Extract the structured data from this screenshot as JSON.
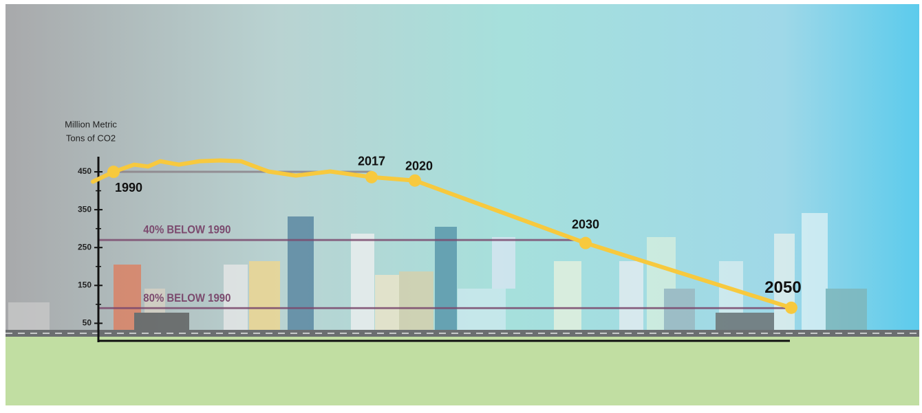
{
  "chart_data": {
    "type": "line",
    "y_label": [
      "Million Metric",
      "Tons of CO2"
    ],
    "categories": [
      null,
      "1990",
      null,
      null,
      null,
      null,
      null,
      null,
      null,
      null,
      null,
      null,
      "2017",
      "2020",
      "2030",
      "2050"
    ],
    "values": [
      424,
      450,
      469,
      464,
      478,
      469,
      478,
      480,
      478,
      451,
      440,
      451,
      436,
      427,
      262,
      91
    ],
    "color": "#f7c93e",
    "ylim": [
      0,
      490
    ],
    "yticks": [
      50,
      150,
      250,
      350,
      450
    ],
    "reference_lines": [
      {
        "value": 450,
        "color": "#8a7f86"
      },
      {
        "value": 270,
        "label": "40% BELOW 1990",
        "color": "#7b4a6e"
      },
      {
        "value": 90,
        "label": "80% BELOW 1990",
        "color": "#7b4a6e"
      }
    ]
  }
}
